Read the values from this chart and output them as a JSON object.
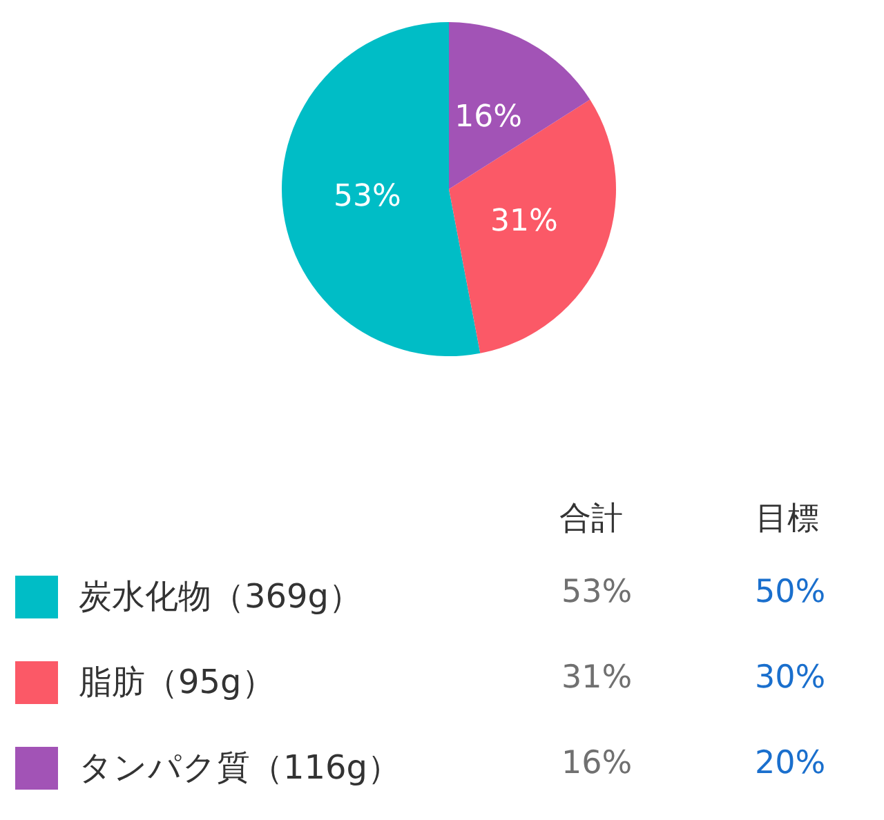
{
  "chart_data": {
    "type": "pie",
    "categories": [
      "炭水化物（369g）",
      "脂肪（95g）",
      "タンパク質（116g）"
    ],
    "values": [
      53,
      31,
      16
    ],
    "value_labels": [
      "53%",
      "31%",
      "16%"
    ],
    "colors": [
      "#00bdc6",
      "#fb5967",
      "#a253b6"
    ],
    "legend": "bottom",
    "annotations": [
      "合計",
      "目標",
      "50%",
      "30%",
      "20%"
    ]
  }
}
